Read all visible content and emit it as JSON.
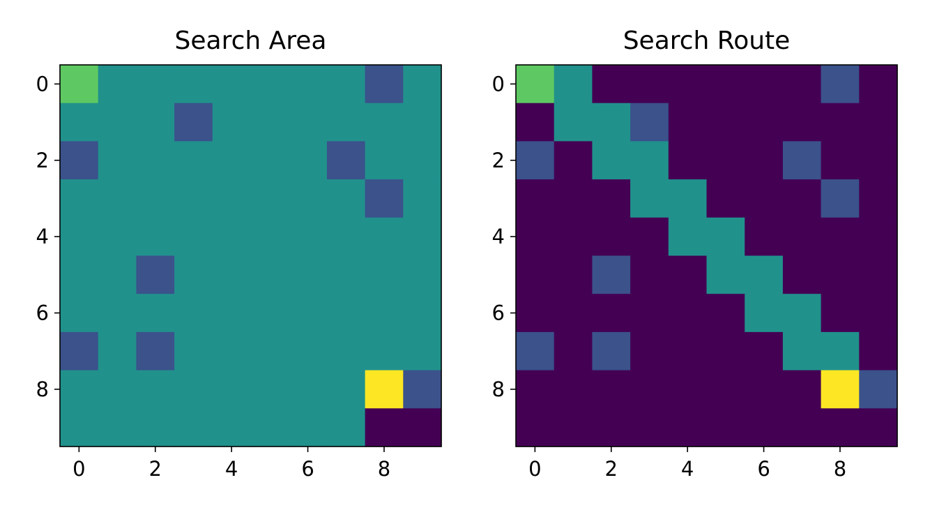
{
  "colors": {
    "0": "#440154",
    "1": "#3b528b",
    "2": "#21918c",
    "3": "#5ec962",
    "4": "#fde725"
  },
  "chart_data": [
    {
      "type": "heatmap",
      "title": "Search Area",
      "xlabel": "",
      "ylabel": "",
      "x_ticks": [
        0,
        2,
        4,
        6,
        8
      ],
      "y_ticks": [
        0,
        2,
        4,
        6,
        8
      ],
      "grid": false,
      "z": [
        [
          3,
          2,
          2,
          2,
          2,
          2,
          2,
          2,
          1,
          2
        ],
        [
          2,
          2,
          2,
          1,
          2,
          2,
          2,
          2,
          2,
          2
        ],
        [
          1,
          2,
          2,
          2,
          2,
          2,
          2,
          1,
          2,
          2
        ],
        [
          2,
          2,
          2,
          2,
          2,
          2,
          2,
          2,
          1,
          2
        ],
        [
          2,
          2,
          2,
          2,
          2,
          2,
          2,
          2,
          2,
          2
        ],
        [
          2,
          2,
          1,
          2,
          2,
          2,
          2,
          2,
          2,
          2
        ],
        [
          2,
          2,
          2,
          2,
          2,
          2,
          2,
          2,
          2,
          2
        ],
        [
          1,
          2,
          1,
          2,
          2,
          2,
          2,
          2,
          2,
          2
        ],
        [
          2,
          2,
          2,
          2,
          2,
          2,
          2,
          2,
          4,
          1
        ],
        [
          2,
          2,
          2,
          2,
          2,
          2,
          2,
          2,
          0,
          0
        ]
      ]
    },
    {
      "type": "heatmap",
      "title": "Search Route",
      "xlabel": "",
      "ylabel": "",
      "x_ticks": [
        0,
        2,
        4,
        6,
        8
      ],
      "y_ticks": [
        0,
        2,
        4,
        6,
        8
      ],
      "grid": false,
      "z": [
        [
          3,
          2,
          0,
          0,
          0,
          0,
          0,
          0,
          1,
          0
        ],
        [
          0,
          2,
          2,
          1,
          0,
          0,
          0,
          0,
          0,
          0
        ],
        [
          1,
          0,
          2,
          2,
          0,
          0,
          0,
          1,
          0,
          0
        ],
        [
          0,
          0,
          0,
          2,
          2,
          0,
          0,
          0,
          1,
          0
        ],
        [
          0,
          0,
          0,
          0,
          2,
          2,
          0,
          0,
          0,
          0
        ],
        [
          0,
          0,
          1,
          0,
          0,
          2,
          2,
          0,
          0,
          0
        ],
        [
          0,
          0,
          0,
          0,
          0,
          0,
          2,
          2,
          0,
          0
        ],
        [
          1,
          0,
          1,
          0,
          0,
          0,
          0,
          2,
          2,
          0
        ],
        [
          0,
          0,
          0,
          0,
          0,
          0,
          0,
          0,
          4,
          1
        ],
        [
          0,
          0,
          0,
          0,
          0,
          0,
          0,
          0,
          0,
          0
        ]
      ]
    }
  ]
}
